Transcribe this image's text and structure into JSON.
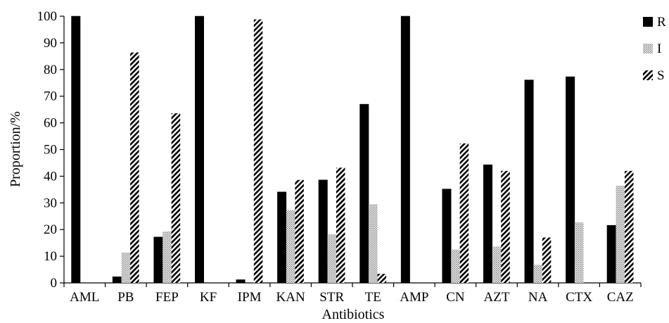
{
  "chart_data": {
    "type": "bar",
    "title": "",
    "xlabel": "Antibiotics",
    "ylabel": "Proportion/%",
    "ylim": [
      0,
      100
    ],
    "yticks": [
      0,
      10,
      20,
      30,
      40,
      50,
      60,
      70,
      80,
      90,
      100
    ],
    "grid": false,
    "legend_position": "right",
    "categories": [
      "AML",
      "PB",
      "FEP",
      "KF",
      "IPM",
      "KAN",
      "STR",
      "TE",
      "AMP",
      "CN",
      "AZT",
      "NA",
      "CTX",
      "CAZ"
    ],
    "series": [
      {
        "name": "R",
        "pattern": "solid",
        "color": "#000000",
        "values": [
          100,
          2.3,
          17.2,
          100,
          1.2,
          34.1,
          38.6,
          67.0,
          100,
          35.2,
          44.3,
          76.1,
          77.3,
          21.6
        ]
      },
      {
        "name": "I",
        "pattern": "dotted",
        "color": "#9a9a9a",
        "values": [
          0,
          11.4,
          19.3,
          0,
          0,
          27.3,
          18.2,
          29.5,
          0,
          12.5,
          13.6,
          6.8,
          22.7,
          36.4
        ]
      },
      {
        "name": "S",
        "pattern": "hatched",
        "color": "#000000",
        "values": [
          0,
          86.4,
          63.6,
          0,
          98.8,
          38.6,
          43.2,
          3.4,
          0,
          52.3,
          42.0,
          17.0,
          0,
          42.0
        ]
      }
    ]
  }
}
